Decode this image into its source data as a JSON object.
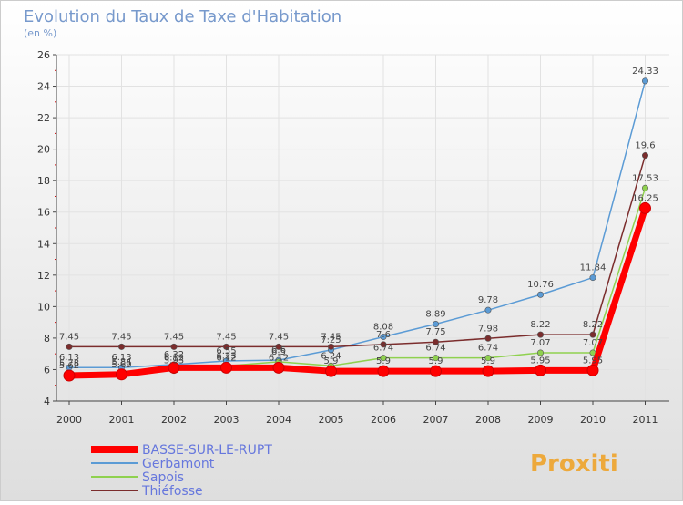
{
  "chart_data": {
    "type": "line",
    "title": "Evolution du Taux de Taxe d'Habitation",
    "subtitle": "(en %)",
    "x": [
      "2000",
      "2001",
      "2002",
      "2003",
      "2004",
      "2005",
      "2006",
      "2007",
      "2008",
      "2009",
      "2010",
      "2011"
    ],
    "ylim": [
      4,
      26
    ],
    "yticks": [
      4,
      6,
      8,
      10,
      12,
      14,
      16,
      18,
      20,
      22,
      24,
      26
    ],
    "grid": true,
    "legend_position": "bottom-left",
    "series": [
      {
        "name": "BASSE-SUR-LE-RUPT",
        "color": "#ff0000",
        "values": [
          5.62,
          5.69,
          6.12,
          6.12,
          6.12,
          5.9,
          5.9,
          5.9,
          5.9,
          5.95,
          5.95,
          16.25
        ],
        "labels": [
          "5.62",
          "5.69",
          "6.12",
          "6.12",
          "6.12",
          "5.9",
          "5.9",
          "5.9",
          "5.9",
          "5.95",
          "5.95",
          "16.25"
        ]
      },
      {
        "name": "Gerbamont",
        "color": "#5b9bd5",
        "values": [
          6.13,
          6.13,
          6.32,
          6.55,
          6.6,
          7.25,
          8.08,
          8.89,
          9.78,
          10.76,
          11.84,
          24.33
        ],
        "labels": [
          "6.13",
          "6.13",
          "6.32",
          "6.55",
          "6.6",
          "7.25",
          "8.08",
          "8.89",
          "9.78",
          "10.76",
          "11.84",
          "24.33"
        ]
      },
      {
        "name": "Sapois",
        "color": "#8fd14f",
        "values": [
          5.78,
          5.84,
          5.93,
          6.23,
          6.5,
          6.24,
          6.74,
          6.74,
          6.74,
          7.07,
          7.07,
          17.53
        ],
        "labels": [
          "5.78",
          "5.84",
          "5.93",
          "6.23",
          "6.5",
          "6.24",
          "6.74",
          "6.74",
          "6.74",
          "7.07",
          "7.07",
          "17.53"
        ]
      },
      {
        "name": "Thiéfosse",
        "color": "#7b2d2d",
        "values": [
          7.45,
          7.45,
          7.45,
          7.45,
          7.45,
          7.45,
          7.6,
          7.75,
          7.98,
          8.22,
          8.22,
          19.6
        ],
        "labels": [
          "7.45",
          "7.45",
          "7.45",
          "7.45",
          "7.45",
          "7.45",
          "7.6",
          "7.75",
          "7.98",
          "8.22",
          "8.22",
          "19.6"
        ]
      }
    ]
  },
  "watermark": {
    "text": "Proxiti"
  }
}
